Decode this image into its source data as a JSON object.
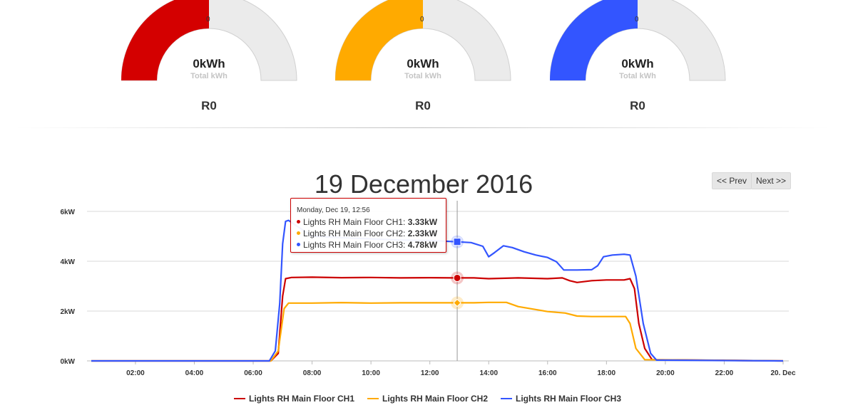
{
  "gauges": [
    {
      "zero_label": "0",
      "value_text": "0kWh",
      "sub_label": "Total kWh",
      "r_label": "R0",
      "color": "#d40000",
      "fill_fraction": 0.5
    },
    {
      "zero_label": "0",
      "value_text": "0kWh",
      "sub_label": "Total kWh",
      "r_label": "R0",
      "color": "#ffaa00",
      "fill_fraction": 0.5
    },
    {
      "zero_label": "0",
      "value_text": "0kWh",
      "sub_label": "Total kWh",
      "r_label": "R0",
      "color": "#3355ff",
      "fill_fraction": 0.5
    }
  ],
  "gauge_track_color": "#ebebeb",
  "header": {
    "date_title": "19 December 2016",
    "prev_label": "<< Prev",
    "next_label": "Next >>"
  },
  "tooltip": {
    "header": "Monday, Dec 19, 12:56",
    "rows": [
      {
        "label": "Lights RH Main Floor CH1: ",
        "value": "3.33kW",
        "color": "#cc0000"
      },
      {
        "label": "Lights RH Main Floor CH2: ",
        "value": "2.33kW",
        "color": "#ffaa00"
      },
      {
        "label": "Lights RH Main Floor CH3: ",
        "value": "4.78kW",
        "color": "#3355ff"
      }
    ]
  },
  "chart_data": {
    "type": "line",
    "title": "",
    "xlabel": "",
    "ylabel": "",
    "x_unit": "hours",
    "xlim": [
      0.5,
      24
    ],
    "ylim": [
      0,
      6
    ],
    "grid": true,
    "legend_position": "bottom",
    "x_ticks": [
      {
        "x": 2,
        "label": "02:00"
      },
      {
        "x": 4,
        "label": "04:00"
      },
      {
        "x": 6,
        "label": "06:00"
      },
      {
        "x": 8,
        "label": "08:00"
      },
      {
        "x": 10,
        "label": "10:00"
      },
      {
        "x": 12,
        "label": "12:00"
      },
      {
        "x": 14,
        "label": "14:00"
      },
      {
        "x": 16,
        "label": "16:00"
      },
      {
        "x": 18,
        "label": "18:00"
      },
      {
        "x": 20,
        "label": "20:00"
      },
      {
        "x": 22,
        "label": "22:00"
      },
      {
        "x": 24,
        "label": "20. Dec"
      }
    ],
    "y_ticks": [
      {
        "y": 0,
        "label": "0kW"
      },
      {
        "y": 2,
        "label": "2kW"
      },
      {
        "y": 4,
        "label": "4kW"
      },
      {
        "y": 6,
        "label": "6kW"
      }
    ],
    "crosshair_x": 12.93,
    "series": [
      {
        "name": "Lights RH Main Floor CH1",
        "color": "#cc0000",
        "marker": "circle",
        "highlight": {
          "x": 12.93,
          "y": 3.33
        },
        "points": [
          [
            0.5,
            0
          ],
          [
            6.6,
            0
          ],
          [
            6.85,
            0.3
          ],
          [
            7.0,
            2.6
          ],
          [
            7.1,
            3.3
          ],
          [
            7.3,
            3.35
          ],
          [
            8,
            3.36
          ],
          [
            9,
            3.34
          ],
          [
            10,
            3.35
          ],
          [
            11,
            3.33
          ],
          [
            12,
            3.34
          ],
          [
            12.93,
            3.33
          ],
          [
            13.5,
            3.33
          ],
          [
            14,
            3.3
          ],
          [
            15,
            3.33
          ],
          [
            16,
            3.3
          ],
          [
            16.5,
            3.33
          ],
          [
            16.75,
            3.22
          ],
          [
            17,
            3.15
          ],
          [
            17.5,
            3.22
          ],
          [
            18,
            3.25
          ],
          [
            18.6,
            3.25
          ],
          [
            18.8,
            3.3
          ],
          [
            18.95,
            2.9
          ],
          [
            19.1,
            1.5
          ],
          [
            19.3,
            0.5
          ],
          [
            19.55,
            0.05
          ],
          [
            24,
            0
          ]
        ]
      },
      {
        "name": "Lights RH Main Floor CH2",
        "color": "#ffaa00",
        "marker": "diamond",
        "highlight": {
          "x": 12.93,
          "y": 2.33
        },
        "points": [
          [
            0.5,
            0
          ],
          [
            6.6,
            0
          ],
          [
            6.85,
            0.4
          ],
          [
            7.05,
            2.1
          ],
          [
            7.2,
            2.32
          ],
          [
            8,
            2.32
          ],
          [
            9,
            2.34
          ],
          [
            10,
            2.32
          ],
          [
            11,
            2.33
          ],
          [
            12,
            2.33
          ],
          [
            12.93,
            2.33
          ],
          [
            13.5,
            2.33
          ],
          [
            14,
            2.35
          ],
          [
            14.6,
            2.35
          ],
          [
            15,
            2.18
          ],
          [
            15.5,
            2.08
          ],
          [
            16,
            1.98
          ],
          [
            16.6,
            1.92
          ],
          [
            17,
            1.8
          ],
          [
            17.5,
            1.78
          ],
          [
            18,
            1.78
          ],
          [
            18.65,
            1.78
          ],
          [
            18.8,
            1.5
          ],
          [
            19.0,
            0.5
          ],
          [
            19.3,
            0.05
          ],
          [
            24,
            0
          ]
        ]
      },
      {
        "name": "Lights RH Main Floor CH3",
        "color": "#3355ff",
        "marker": "square",
        "highlight": {
          "x": 12.93,
          "y": 4.78
        },
        "points": [
          [
            0.5,
            0
          ],
          [
            6.55,
            0
          ],
          [
            6.75,
            0.4
          ],
          [
            6.9,
            2.3
          ],
          [
            7.0,
            4.7
          ],
          [
            7.1,
            5.6
          ],
          [
            7.2,
            5.64
          ],
          [
            7.5,
            5.4
          ],
          [
            8,
            5.0
          ],
          [
            9,
            4.95
          ],
          [
            10,
            4.9
          ],
          [
            11,
            4.85
          ],
          [
            12,
            4.83
          ],
          [
            12.93,
            4.78
          ],
          [
            13.4,
            4.75
          ],
          [
            13.8,
            4.6
          ],
          [
            14,
            4.18
          ],
          [
            14.2,
            4.35
          ],
          [
            14.5,
            4.62
          ],
          [
            14.8,
            4.55
          ],
          [
            15.2,
            4.38
          ],
          [
            15.6,
            4.25
          ],
          [
            16,
            4.15
          ],
          [
            16.3,
            3.98
          ],
          [
            16.55,
            3.65
          ],
          [
            17,
            3.65
          ],
          [
            17.5,
            3.66
          ],
          [
            17.7,
            3.82
          ],
          [
            17.9,
            4.18
          ],
          [
            18.2,
            4.25
          ],
          [
            18.6,
            4.28
          ],
          [
            18.8,
            4.25
          ],
          [
            19.0,
            3.4
          ],
          [
            19.25,
            1.5
          ],
          [
            19.5,
            0.3
          ],
          [
            19.7,
            0.03
          ],
          [
            24,
            0
          ]
        ]
      }
    ]
  }
}
